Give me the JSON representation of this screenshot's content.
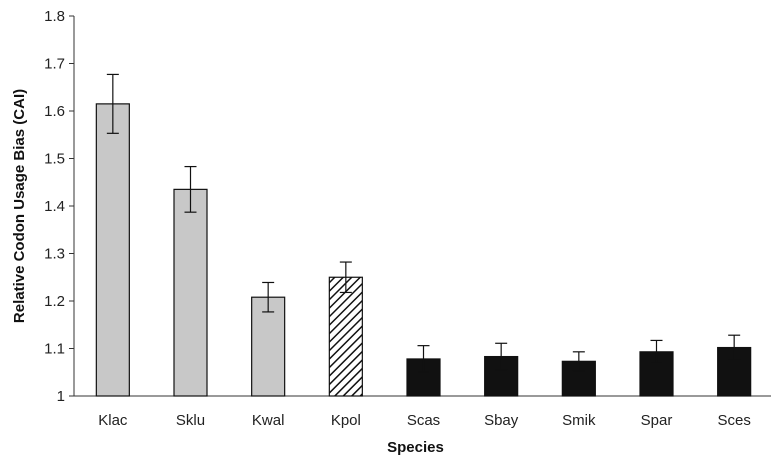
{
  "chart_data": {
    "type": "bar",
    "title": "",
    "xlabel": "Species",
    "ylabel": "Relative Codon Usage Bias (CAI)",
    "ylim": [
      1,
      1.8
    ],
    "yticks": [
      1,
      1.1,
      1.2,
      1.3,
      1.4,
      1.5,
      1.6,
      1.7,
      1.8
    ],
    "ytick_labels": [
      "1",
      "1.1",
      "1.2",
      "1.3",
      "1.4",
      "1.5",
      "1.6",
      "1.7",
      "1.8"
    ],
    "categories": [
      "Klac",
      "Sklu",
      "Kwal",
      "Kpol",
      "Scas",
      "Sbay",
      "Smik",
      "Spar",
      "Sces"
    ],
    "values": [
      1.615,
      1.435,
      1.208,
      1.25,
      1.078,
      1.083,
      1.073,
      1.093,
      1.102
    ],
    "errors": [
      0.062,
      0.048,
      0.031,
      0.032,
      0.028,
      0.028,
      0.02,
      0.024,
      0.026
    ],
    "bar_styles": [
      "gray",
      "gray",
      "gray",
      "hatched",
      "black",
      "black",
      "black",
      "black",
      "black"
    ],
    "grid": false,
    "colors": {
      "gray": "#c8c8c8",
      "black": "#111111",
      "hatch": "#111111",
      "axis": "#333333"
    }
  }
}
